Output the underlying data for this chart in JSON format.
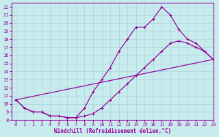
{
  "xlabel": "Windchill (Refroidissement éolien,°C)",
  "xlim": [
    -0.5,
    23
  ],
  "ylim": [
    8,
    22.5
  ],
  "xticks": [
    0,
    1,
    2,
    3,
    4,
    5,
    6,
    7,
    8,
    9,
    10,
    11,
    12,
    13,
    14,
    15,
    16,
    17,
    18,
    19,
    20,
    21,
    22,
    23
  ],
  "yticks": [
    8,
    9,
    10,
    11,
    12,
    13,
    14,
    15,
    16,
    17,
    18,
    19,
    20,
    21,
    22
  ],
  "bg_color": "#c8ecee",
  "grid_color": "#a8d4d8",
  "line_color": "#990099",
  "line1_x": [
    0,
    1,
    2,
    3,
    4,
    5,
    6,
    7,
    8,
    9,
    10,
    11,
    12,
    13,
    14,
    15,
    16,
    17,
    18,
    19,
    20,
    21,
    22,
    23
  ],
  "line1_y": [
    10.5,
    9.5,
    9.0,
    9.0,
    8.5,
    8.5,
    8.3,
    8.3,
    9.5,
    11.5,
    13.0,
    14.5,
    16.5,
    18.0,
    19.5,
    19.5,
    20.5,
    22.0,
    21.0,
    19.2,
    18.0,
    17.5,
    16.5,
    15.5
  ],
  "line2_x": [
    0,
    1,
    2,
    3,
    4,
    5,
    6,
    7,
    8,
    9,
    10,
    11,
    12,
    13,
    14,
    15,
    16,
    17,
    18,
    19,
    20,
    21,
    22,
    23
  ],
  "line2_y": [
    10.5,
    9.5,
    9.0,
    9.0,
    8.5,
    8.5,
    8.3,
    8.3,
    8.5,
    8.8,
    9.5,
    10.5,
    11.5,
    12.5,
    13.5,
    14.5,
    15.5,
    16.5,
    17.5,
    17.8,
    17.5,
    17.0,
    16.5,
    15.5
  ],
  "line3_x": [
    0,
    23
  ],
  "line3_y": [
    10.5,
    15.5
  ],
  "marker": "+",
  "markersize": 3.5,
  "linewidth": 0.9,
  "tick_fontsize": 5,
  "xlabel_fontsize": 5.5
}
